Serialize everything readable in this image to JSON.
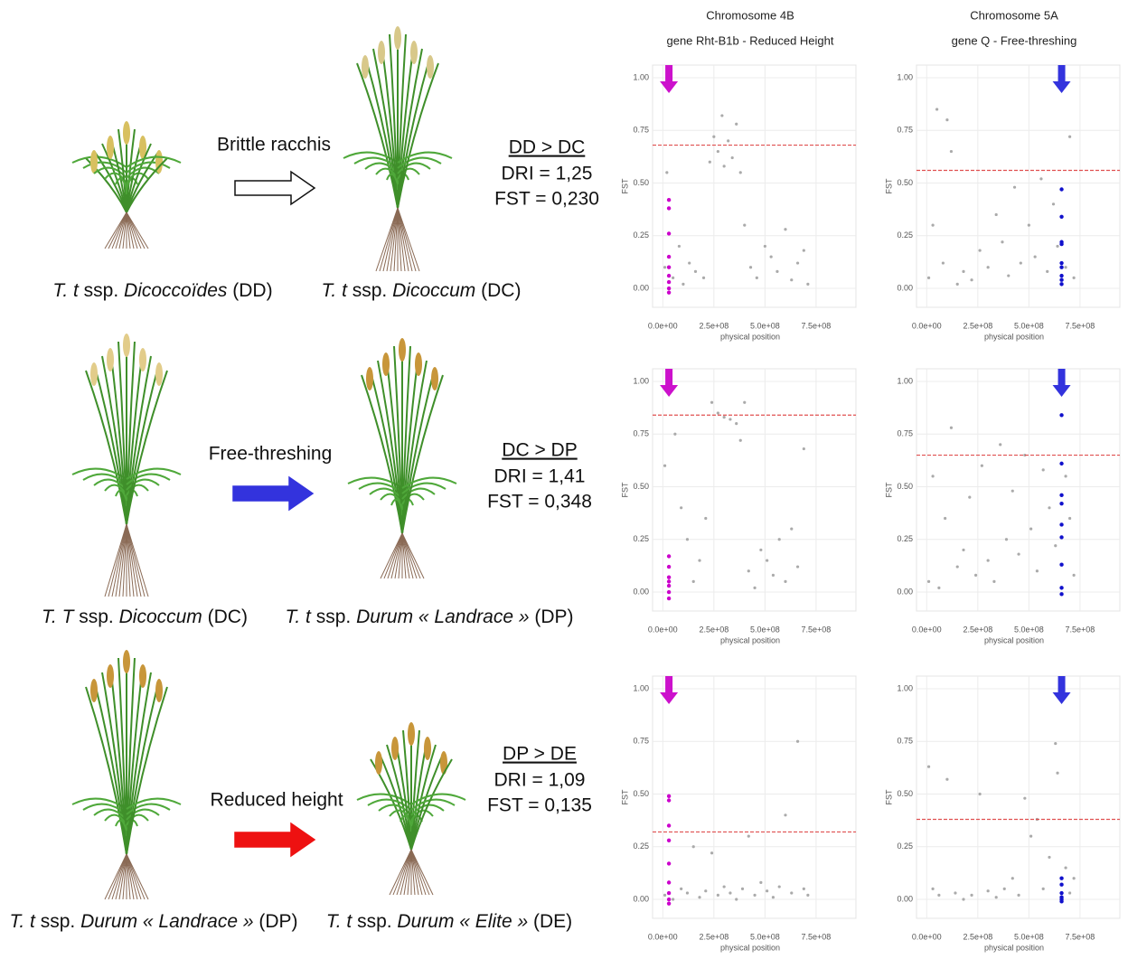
{
  "columns": [
    {
      "chromosome": "Chromosome 4B",
      "gene": "gene Rht-B1b - Reduced Height"
    },
    {
      "chromosome": "Chromosome 5A",
      "gene": "gene Q - Free-threshing"
    }
  ],
  "transitions": [
    {
      "from_label": [
        "T. t",
        "ssp.",
        "Dicoccoïdes",
        "(DD)"
      ],
      "to_label": [
        "T. t",
        "ssp.",
        "Dicoccum",
        "(DC)"
      ],
      "process": "Brittle racchis",
      "arrow_color": "#ffffff",
      "comparison": "DD > DC",
      "dri": "DRI = 1,25",
      "fst": "FST = 0,230"
    },
    {
      "from_label": [
        "T. T",
        "ssp.",
        "Dicoccum",
        "(DC)"
      ],
      "to_label": [
        "T. t",
        "ssp.",
        "Durum « Landrace »",
        "(DP)"
      ],
      "process": "Free-threshing",
      "arrow_color": "#3333dd",
      "comparison": "DC > DP",
      "dri": "DRI = 1,41",
      "fst": "FST = 0,348"
    },
    {
      "from_label": [
        "T. t",
        "ssp.",
        "Durum « Landrace »",
        "(DP)"
      ],
      "to_label": [
        "T. t",
        "ssp.",
        "Durum « Elite »",
        "(DE)"
      ],
      "process": "Reduced height",
      "arrow_color": "#ee1111",
      "comparison": "DP > DE",
      "dri": "DRI = 1,09",
      "fst": "FST = 0,135"
    }
  ],
  "chart_data": [
    {
      "type": "scatter",
      "xlabel": "physical position",
      "ylabel": "FST",
      "xlim": [
        -50000000.0,
        945000000.0
      ],
      "ylim": [
        -0.09,
        1.06
      ],
      "xticks": [
        {
          "value": 0,
          "label": "0.0e+00"
        },
        {
          "value": 250000000.0,
          "label": "2.5e+08"
        },
        {
          "value": 500000000.0,
          "label": "5.0e+08"
        },
        {
          "value": 750000000.0,
          "label": "7.5e+08"
        }
      ],
      "yticks": [
        {
          "value": 0,
          "label": "0.00"
        },
        {
          "value": 0.25,
          "label": "0.25"
        },
        {
          "value": 0.5,
          "label": "0.50"
        },
        {
          "value": 0.75,
          "label": "0.75"
        },
        {
          "value": 1,
          "label": "1.00"
        }
      ],
      "grid": true,
      "threshold": 0.68,
      "threshold_color": "#e05050",
      "marker_x": 30000000.0,
      "marker_color": "#cc11cc",
      "series": [
        {
          "color": "#aaaaaa",
          "x": [
            10000000.0,
            20000000.0,
            50000000.0,
            80000000.0,
            100000000.0,
            130000000.0,
            160000000.0,
            200000000.0,
            230000000.0,
            250000000.0,
            270000000.0,
            290000000.0,
            300000000.0,
            320000000.0,
            340000000.0,
            360000000.0,
            380000000.0,
            400000000.0,
            430000000.0,
            460000000.0,
            500000000.0,
            530000000.0,
            560000000.0,
            600000000.0,
            630000000.0,
            660000000.0,
            690000000.0,
            710000000.0
          ],
          "values": [
            0.1,
            0.55,
            0.05,
            0.2,
            0.02,
            0.12,
            0.08,
            0.05,
            0.6,
            0.72,
            0.65,
            0.82,
            0.58,
            0.7,
            0.62,
            0.78,
            0.55,
            0.3,
            0.1,
            0.05,
            0.2,
            0.15,
            0.08,
            0.28,
            0.04,
            0.12,
            0.18,
            0.02
          ]
        },
        {
          "color": "#cc00cc",
          "x": [
            30000000.0,
            30000000.0,
            30000000.0,
            30000000.0,
            30000000.0,
            30000000.0,
            30000000.0,
            30000000.0,
            30000000.0
          ],
          "values": [
            0.42,
            0.38,
            0.26,
            0.15,
            0.1,
            0.06,
            0.03,
            0.0,
            -0.02
          ]
        }
      ]
    },
    {
      "type": "scatter",
      "xlabel": "physical position",
      "ylabel": "FST",
      "xlim": [
        -50000000.0,
        945000000.0
      ],
      "ylim": [
        -0.09,
        1.06
      ],
      "xticks": [
        {
          "value": 0,
          "label": "0.0e+00"
        },
        {
          "value": 250000000.0,
          "label": "2.5e+08"
        },
        {
          "value": 500000000.0,
          "label": "5.0e+08"
        },
        {
          "value": 750000000.0,
          "label": "7.5e+08"
        }
      ],
      "yticks": [
        {
          "value": 0,
          "label": "0.00"
        },
        {
          "value": 0.25,
          "label": "0.25"
        },
        {
          "value": 0.5,
          "label": "0.50"
        },
        {
          "value": 0.75,
          "label": "0.75"
        },
        {
          "value": 1,
          "label": "1.00"
        }
      ],
      "grid": true,
      "threshold": 0.56,
      "threshold_color": "#e05050",
      "marker_x": 660000000.0,
      "marker_color": "#3333dd",
      "series": [
        {
          "color": "#aaaaaa",
          "x": [
            10000000.0,
            30000000.0,
            50000000.0,
            80000000.0,
            100000000.0,
            120000000.0,
            150000000.0,
            180000000.0,
            220000000.0,
            260000000.0,
            300000000.0,
            340000000.0,
            370000000.0,
            400000000.0,
            430000000.0,
            460000000.0,
            500000000.0,
            530000000.0,
            560000000.0,
            590000000.0,
            620000000.0,
            640000000.0,
            680000000.0,
            700000000.0,
            720000000.0
          ],
          "values": [
            0.05,
            0.3,
            0.85,
            0.12,
            0.8,
            0.65,
            0.02,
            0.08,
            0.04,
            0.18,
            0.1,
            0.35,
            0.22,
            0.06,
            0.48,
            0.12,
            0.3,
            0.15,
            0.52,
            0.08,
            0.4,
            0.2,
            0.1,
            0.72,
            0.05
          ]
        },
        {
          "color": "#1111cc",
          "x": [
            660000000.0,
            660000000.0,
            660000000.0,
            660000000.0,
            660000000.0,
            660000000.0,
            660000000.0,
            660000000.0,
            660000000.0
          ],
          "values": [
            0.47,
            0.34,
            0.22,
            0.21,
            0.12,
            0.1,
            0.06,
            0.04,
            0.02
          ]
        }
      ]
    },
    {
      "type": "scatter",
      "xlabel": "physical position",
      "ylabel": "FST",
      "xlim": [
        -50000000.0,
        945000000.0
      ],
      "ylim": [
        -0.09,
        1.06
      ],
      "xticks": [
        {
          "value": 0,
          "label": "0.0e+00"
        },
        {
          "value": 250000000.0,
          "label": "2.5e+08"
        },
        {
          "value": 500000000.0,
          "label": "5.0e+08"
        },
        {
          "value": 750000000.0,
          "label": "7.5e+08"
        }
      ],
      "yticks": [
        {
          "value": 0,
          "label": "0.00"
        },
        {
          "value": 0.25,
          "label": "0.25"
        },
        {
          "value": 0.5,
          "label": "0.50"
        },
        {
          "value": 0.75,
          "label": "0.75"
        },
        {
          "value": 1,
          "label": "1.00"
        }
      ],
      "grid": true,
      "threshold": 0.84,
      "threshold_color": "#e05050",
      "marker_x": 30000000.0,
      "marker_color": "#cc11cc",
      "series": [
        {
          "color": "#aaaaaa",
          "x": [
            10000000.0,
            30000000.0,
            60000000.0,
            90000000.0,
            120000000.0,
            150000000.0,
            180000000.0,
            210000000.0,
            240000000.0,
            270000000.0,
            300000000.0,
            330000000.0,
            360000000.0,
            380000000.0,
            400000000.0,
            420000000.0,
            450000000.0,
            480000000.0,
            510000000.0,
            540000000.0,
            570000000.0,
            600000000.0,
            630000000.0,
            660000000.0,
            690000000.0
          ],
          "values": [
            0.6,
            0.95,
            0.75,
            0.4,
            0.25,
            0.05,
            0.15,
            0.35,
            0.9,
            0.85,
            0.83,
            0.82,
            0.8,
            0.72,
            0.9,
            0.1,
            0.02,
            0.2,
            0.15,
            0.08,
            0.25,
            0.05,
            0.3,
            0.12,
            0.68
          ]
        },
        {
          "color": "#cc00cc",
          "x": [
            30000000.0,
            30000000.0,
            30000000.0,
            30000000.0,
            30000000.0,
            30000000.0,
            30000000.0
          ],
          "values": [
            0.17,
            0.12,
            0.07,
            0.05,
            0.03,
            0.0,
            -0.03
          ]
        }
      ]
    },
    {
      "type": "scatter",
      "xlabel": "physical position",
      "ylabel": "FST",
      "xlim": [
        -50000000.0,
        945000000.0
      ],
      "ylim": [
        -0.09,
        1.06
      ],
      "xticks": [
        {
          "value": 0,
          "label": "0.0e+00"
        },
        {
          "value": 250000000.0,
          "label": "2.5e+08"
        },
        {
          "value": 500000000.0,
          "label": "5.0e+08"
        },
        {
          "value": 750000000.0,
          "label": "7.5e+08"
        }
      ],
      "yticks": [
        {
          "value": 0,
          "label": "0.00"
        },
        {
          "value": 0.25,
          "label": "0.25"
        },
        {
          "value": 0.5,
          "label": "0.50"
        },
        {
          "value": 0.75,
          "label": "0.75"
        },
        {
          "value": 1,
          "label": "1.00"
        }
      ],
      "grid": true,
      "threshold": 0.65,
      "threshold_color": "#e05050",
      "marker_x": 660000000.0,
      "marker_color": "#3333dd",
      "series": [
        {
          "color": "#aaaaaa",
          "x": [
            10000000.0,
            30000000.0,
            60000000.0,
            90000000.0,
            120000000.0,
            150000000.0,
            180000000.0,
            210000000.0,
            240000000.0,
            270000000.0,
            300000000.0,
            330000000.0,
            360000000.0,
            390000000.0,
            420000000.0,
            450000000.0,
            480000000.0,
            510000000.0,
            540000000.0,
            570000000.0,
            600000000.0,
            630000000.0,
            680000000.0,
            700000000.0,
            720000000.0
          ],
          "values": [
            0.05,
            0.55,
            0.02,
            0.35,
            0.78,
            0.12,
            0.2,
            0.45,
            0.08,
            0.6,
            0.15,
            0.05,
            0.7,
            0.25,
            0.48,
            0.18,
            0.65,
            0.3,
            0.1,
            0.58,
            0.4,
            0.22,
            0.55,
            0.35,
            0.08
          ]
        },
        {
          "color": "#1111cc",
          "x": [
            660000000.0,
            660000000.0,
            660000000.0,
            660000000.0,
            660000000.0,
            660000000.0,
            660000000.0,
            660000000.0,
            660000000.0
          ],
          "values": [
            0.84,
            0.61,
            0.46,
            0.42,
            0.32,
            0.26,
            0.13,
            0.02,
            -0.01
          ]
        }
      ]
    },
    {
      "type": "scatter",
      "xlabel": "physical position",
      "ylabel": "FST",
      "xlim": [
        -50000000.0,
        945000000.0
      ],
      "ylim": [
        -0.09,
        1.06
      ],
      "xticks": [
        {
          "value": 0,
          "label": "0.0e+00"
        },
        {
          "value": 250000000.0,
          "label": "2.5e+08"
        },
        {
          "value": 500000000.0,
          "label": "5.0e+08"
        },
        {
          "value": 750000000.0,
          "label": "7.5e+08"
        }
      ],
      "yticks": [
        {
          "value": 0,
          "label": "0.00"
        },
        {
          "value": 0.25,
          "label": "0.25"
        },
        {
          "value": 0.5,
          "label": "0.50"
        },
        {
          "value": 0.75,
          "label": "0.75"
        },
        {
          "value": 1,
          "label": "1.00"
        }
      ],
      "grid": true,
      "threshold": 0.32,
      "threshold_color": "#e05050",
      "marker_x": 30000000.0,
      "marker_color": "#cc11cc",
      "series": [
        {
          "color": "#aaaaaa",
          "x": [
            10000000.0,
            50000000.0,
            90000000.0,
            120000000.0,
            150000000.0,
            180000000.0,
            210000000.0,
            240000000.0,
            270000000.0,
            300000000.0,
            330000000.0,
            360000000.0,
            390000000.0,
            420000000.0,
            450000000.0,
            480000000.0,
            510000000.0,
            540000000.0,
            570000000.0,
            600000000.0,
            630000000.0,
            660000000.0,
            690000000.0,
            710000000.0
          ],
          "values": [
            0.02,
            0.0,
            0.05,
            0.03,
            0.25,
            0.01,
            0.04,
            0.22,
            0.02,
            0.06,
            0.03,
            0.0,
            0.05,
            0.3,
            0.02,
            0.08,
            0.04,
            0.01,
            0.06,
            0.4,
            0.03,
            0.75,
            0.05,
            0.02
          ]
        },
        {
          "color": "#cc00cc",
          "x": [
            30000000.0,
            30000000.0,
            30000000.0,
            30000000.0,
            30000000.0,
            30000000.0,
            30000000.0,
            30000000.0,
            30000000.0
          ],
          "values": [
            0.49,
            0.47,
            0.35,
            0.28,
            0.17,
            0.08,
            0.03,
            0.0,
            -0.02
          ]
        }
      ]
    },
    {
      "type": "scatter",
      "xlabel": "physical position",
      "ylabel": "FST",
      "xlim": [
        -50000000.0,
        945000000.0
      ],
      "ylim": [
        -0.09,
        1.06
      ],
      "xticks": [
        {
          "value": 0,
          "label": "0.0e+00"
        },
        {
          "value": 250000000.0,
          "label": "2.5e+08"
        },
        {
          "value": 500000000.0,
          "label": "5.0e+08"
        },
        {
          "value": 750000000.0,
          "label": "7.5e+08"
        }
      ],
      "yticks": [
        {
          "value": 0,
          "label": "0.00"
        },
        {
          "value": 0.25,
          "label": "0.25"
        },
        {
          "value": 0.5,
          "label": "0.50"
        },
        {
          "value": 0.75,
          "label": "0.75"
        },
        {
          "value": 1,
          "label": "1.00"
        }
      ],
      "grid": true,
      "threshold": 0.38,
      "threshold_color": "#e05050",
      "marker_x": 660000000.0,
      "marker_color": "#3333dd",
      "series": [
        {
          "color": "#aaaaaa",
          "x": [
            10000000.0,
            30000000.0,
            60000000.0,
            100000000.0,
            140000000.0,
            180000000.0,
            220000000.0,
            260000000.0,
            300000000.0,
            340000000.0,
            380000000.0,
            420000000.0,
            450000000.0,
            480000000.0,
            510000000.0,
            540000000.0,
            570000000.0,
            600000000.0,
            630000000.0,
            640000000.0,
            680000000.0,
            700000000.0,
            720000000.0
          ],
          "values": [
            0.63,
            0.05,
            0.02,
            0.57,
            0.03,
            0.0,
            0.02,
            0.5,
            0.04,
            0.01,
            0.05,
            0.1,
            0.02,
            0.48,
            0.3,
            0.38,
            0.05,
            0.2,
            0.74,
            0.6,
            0.15,
            0.03,
            0.1
          ]
        },
        {
          "color": "#1111cc",
          "x": [
            660000000.0,
            660000000.0,
            660000000.0,
            660000000.0,
            660000000.0,
            660000000.0
          ],
          "values": [
            0.1,
            0.07,
            0.03,
            0.01,
            0.0,
            -0.01
          ]
        }
      ]
    }
  ]
}
